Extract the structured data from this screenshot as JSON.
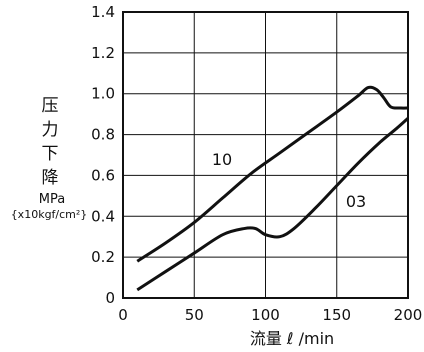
{
  "chart_data": {
    "type": "line",
    "xlabel": "流量 ℓ /min",
    "ylabel_cjk": [
      "压",
      "力",
      "下",
      "降"
    ],
    "ylabel_unit_line1": "MPa",
    "ylabel_unit_line2": "{x10kgf/cm²}",
    "xlim": [
      0,
      200
    ],
    "ylim": [
      0,
      1.4
    ],
    "x_ticks": [
      0,
      50,
      100,
      150,
      200
    ],
    "y_ticks": [
      0,
      0.2,
      0.4,
      0.6,
      0.8,
      1.0,
      1.2,
      1.4
    ],
    "x_tick_labels": [
      "0",
      "50",
      "100",
      "150",
      "200"
    ],
    "y_tick_labels": [
      "0",
      "0.2",
      "0.4",
      "0.6",
      "0.8",
      "1.0",
      "1.2",
      "1.4"
    ],
    "grid": true,
    "series": [
      {
        "name": "10",
        "x": [
          10,
          30,
          50,
          70,
          90,
          110,
          130,
          150,
          165,
          172,
          178,
          183,
          188,
          195,
          200
        ],
        "y": [
          0.18,
          0.27,
          0.37,
          0.49,
          0.61,
          0.71,
          0.81,
          0.91,
          0.99,
          1.03,
          1.02,
          0.98,
          0.935,
          0.93,
          0.93
        ]
      },
      {
        "name": "03",
        "x": [
          10,
          30,
          50,
          70,
          85,
          93,
          100,
          110,
          120,
          135,
          150,
          165,
          180,
          192,
          200
        ],
        "y": [
          0.04,
          0.13,
          0.22,
          0.31,
          0.34,
          0.34,
          0.31,
          0.3,
          0.34,
          0.44,
          0.55,
          0.66,
          0.76,
          0.83,
          0.88
        ]
      }
    ]
  }
}
